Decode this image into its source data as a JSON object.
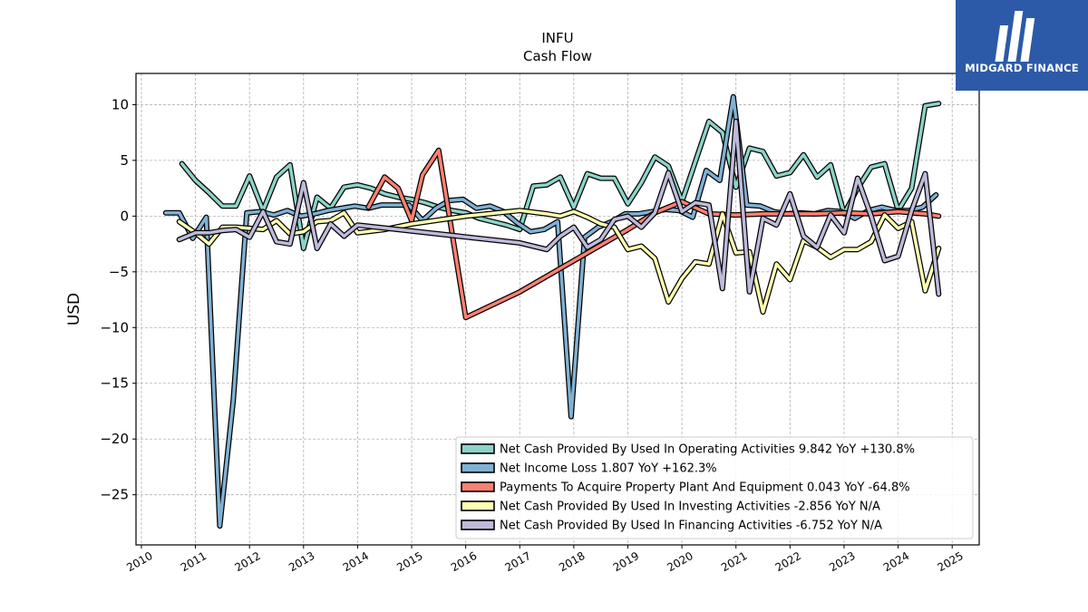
{
  "brand": {
    "name": "MIDGARD FINANCE",
    "bg_color": "#2c5aa8",
    "icon": "midgard-m-icon"
  },
  "chart_data": {
    "type": "line",
    "title": "INFU",
    "subtitle": "Cash Flow",
    "xlabel": "",
    "ylabel": "USD",
    "xlim": [
      2009.9,
      2025.5
    ],
    "ylim": [
      -29.5,
      12.8
    ],
    "x_ticks": [
      2010,
      2011,
      2012,
      2013,
      2014,
      2015,
      2016,
      2017,
      2018,
      2019,
      2020,
      2021,
      2022,
      2023,
      2024,
      2025
    ],
    "y_ticks": [
      10,
      5,
      0,
      -5,
      -10,
      -15,
      -20,
      -25
    ],
    "y_tick_labels": [
      "10",
      "5",
      "0",
      "−5",
      "−10",
      "−15",
      "−20",
      "−25"
    ],
    "grid": true,
    "legend_position": "lower-right",
    "series": [
      {
        "name": "Net Cash Provided By Used In Operating Activities",
        "legend_label": "Net Cash Provided By Used In Operating Activities  9.842 YoY +130.8%",
        "color": "#8dd3c7",
        "points": [
          [
            2010.75,
            4.7
          ],
          [
            2011.0,
            3.2
          ],
          [
            2011.25,
            2.1
          ],
          [
            2011.5,
            0.9
          ],
          [
            2011.75,
            0.9
          ],
          [
            2012.0,
            3.6
          ],
          [
            2012.25,
            0.5
          ],
          [
            2012.5,
            3.5
          ],
          [
            2012.75,
            4.6
          ],
          [
            2013.0,
            -2.9
          ],
          [
            2013.25,
            1.7
          ],
          [
            2013.5,
            0.7
          ],
          [
            2013.75,
            2.6
          ],
          [
            2014.0,
            2.8
          ],
          [
            2014.25,
            2.5
          ],
          [
            2014.5,
            2.0
          ],
          [
            2014.75,
            1.7
          ],
          [
            2015.0,
            1.5
          ],
          [
            2015.25,
            1.2
          ],
          [
            2015.5,
            0.8
          ],
          [
            2015.75,
            0.5
          ],
          [
            2016.0,
            0.3
          ],
          [
            2016.25,
            -0.2
          ],
          [
            2016.5,
            -0.5
          ],
          [
            2016.75,
            -0.8
          ],
          [
            2017.0,
            -1.2
          ],
          [
            2017.25,
            2.7
          ],
          [
            2017.5,
            2.8
          ],
          [
            2017.75,
            3.5
          ],
          [
            2018.0,
            0.8
          ],
          [
            2018.25,
            3.8
          ],
          [
            2018.5,
            3.4
          ],
          [
            2018.75,
            3.4
          ],
          [
            2019.0,
            1.1
          ],
          [
            2019.25,
            3.0
          ],
          [
            2019.5,
            5.3
          ],
          [
            2019.75,
            4.5
          ],
          [
            2020.0,
            1.3
          ],
          [
            2020.25,
            4.9
          ],
          [
            2020.5,
            8.5
          ],
          [
            2020.75,
            7.5
          ],
          [
            2021.0,
            2.6
          ],
          [
            2021.25,
            6.1
          ],
          [
            2021.5,
            5.8
          ],
          [
            2021.75,
            3.6
          ],
          [
            2022.0,
            3.9
          ],
          [
            2022.25,
            5.5
          ],
          [
            2022.5,
            3.5
          ],
          [
            2022.75,
            4.6
          ],
          [
            2023.0,
            0.2
          ],
          [
            2023.25,
            2.5
          ],
          [
            2023.5,
            4.4
          ],
          [
            2023.75,
            4.7
          ],
          [
            2024.0,
            0.5
          ],
          [
            2024.25,
            2.5
          ],
          [
            2024.5,
            9.9
          ],
          [
            2024.75,
            10.1
          ]
        ]
      },
      {
        "name": "Net Income Loss",
        "legend_label": "Net Income Loss  1.807 YoY +162.3%",
        "color": "#80b1d3",
        "points": [
          [
            2010.45,
            0.3
          ],
          [
            2010.7,
            0.3
          ],
          [
            2010.95,
            -2.0
          ],
          [
            2011.2,
            -0.1
          ],
          [
            2011.45,
            -27.8
          ],
          [
            2011.7,
            -16.5
          ],
          [
            2011.95,
            0.3
          ],
          [
            2012.2,
            0.4
          ],
          [
            2012.45,
            0.1
          ],
          [
            2012.7,
            0.5
          ],
          [
            2012.95,
            0.0
          ],
          [
            2013.2,
            0.2
          ],
          [
            2013.45,
            0.5
          ],
          [
            2013.7,
            0.7
          ],
          [
            2013.95,
            0.9
          ],
          [
            2014.2,
            0.7
          ],
          [
            2014.45,
            1.0
          ],
          [
            2014.7,
            1.0
          ],
          [
            2014.95,
            1.0
          ],
          [
            2015.2,
            -0.4
          ],
          [
            2015.45,
            0.7
          ],
          [
            2015.7,
            1.4
          ],
          [
            2015.95,
            1.5
          ],
          [
            2016.2,
            0.7
          ],
          [
            2016.45,
            0.9
          ],
          [
            2016.7,
            0.4
          ],
          [
            2016.95,
            -0.6
          ],
          [
            2017.2,
            -1.4
          ],
          [
            2017.45,
            -1.2
          ],
          [
            2017.7,
            -0.5
          ],
          [
            2017.95,
            -18.0
          ],
          [
            2018.2,
            -1.9
          ],
          [
            2018.45,
            -1.0
          ],
          [
            2018.7,
            -0.5
          ],
          [
            2018.95,
            0.2
          ],
          [
            2019.2,
            0.2
          ],
          [
            2019.45,
            0.4
          ],
          [
            2019.7,
            0.6
          ],
          [
            2019.95,
            0.5
          ],
          [
            2020.2,
            -0.1
          ],
          [
            2020.45,
            4.1
          ],
          [
            2020.7,
            3.2
          ],
          [
            2020.95,
            10.7
          ],
          [
            2021.2,
            1.0
          ],
          [
            2021.45,
            0.9
          ],
          [
            2021.7,
            0.4
          ],
          [
            2021.95,
            0.2
          ],
          [
            2022.2,
            0.3
          ],
          [
            2022.45,
            0.2
          ],
          [
            2022.7,
            0.5
          ],
          [
            2022.95,
            0.4
          ],
          [
            2023.2,
            -0.2
          ],
          [
            2023.45,
            0.5
          ],
          [
            2023.7,
            0.8
          ],
          [
            2023.95,
            0.5
          ],
          [
            2024.2,
            0.5
          ],
          [
            2024.45,
            0.8
          ],
          [
            2024.7,
            1.9
          ]
        ]
      },
      {
        "name": "Payments To Acquire Property Plant And Equipment",
        "legend_label": "Payments To Acquire Property Plant And Equipment  0.043 YoY -64.8%",
        "color": "#fb8072",
        "points": [
          [
            2014.2,
            0.8
          ],
          [
            2014.5,
            3.5
          ],
          [
            2014.75,
            2.5
          ],
          [
            2015.0,
            -0.4
          ],
          [
            2015.2,
            3.7
          ],
          [
            2015.5,
            5.9
          ],
          [
            2016.0,
            -9.1
          ],
          [
            2017.0,
            -6.8
          ],
          [
            2018.0,
            -4.0
          ],
          [
            2019.0,
            -1.2
          ],
          [
            2019.5,
            0.3
          ],
          [
            2020.0,
            1.3
          ],
          [
            2020.5,
            0.2
          ],
          [
            2021.0,
            0.1
          ],
          [
            2021.5,
            0.2
          ],
          [
            2022.0,
            0.2
          ],
          [
            2022.5,
            0.2
          ],
          [
            2023.0,
            0.3
          ],
          [
            2023.5,
            0.2
          ],
          [
            2024.0,
            0.4
          ],
          [
            2024.5,
            0.2
          ],
          [
            2024.75,
            0.0
          ]
        ]
      },
      {
        "name": "Net Cash Provided By Used In Investing Activities",
        "legend_label": "Net Cash Provided By Used In Investing Activities  -2.856 YoY N/A",
        "color": "#ffffb3",
        "points": [
          [
            2010.7,
            -0.5
          ],
          [
            2011.0,
            -1.5
          ],
          [
            2011.25,
            -2.5
          ],
          [
            2011.5,
            -1.0
          ],
          [
            2011.75,
            -1.0
          ],
          [
            2012.0,
            -1.1
          ],
          [
            2012.25,
            -1.2
          ],
          [
            2012.5,
            -0.4
          ],
          [
            2012.75,
            -1.6
          ],
          [
            2013.0,
            -1.4
          ],
          [
            2013.25,
            -0.5
          ],
          [
            2013.5,
            -0.4
          ],
          [
            2013.75,
            0.3
          ],
          [
            2014.0,
            -1.5
          ],
          [
            2014.5,
            -1.2
          ],
          [
            2015.0,
            -0.7
          ],
          [
            2016.0,
            0.0
          ],
          [
            2017.0,
            0.5
          ],
          [
            2017.5,
            0.2
          ],
          [
            2017.75,
            0.0
          ],
          [
            2018.0,
            0.4
          ],
          [
            2018.25,
            -0.1
          ],
          [
            2018.5,
            -0.7
          ],
          [
            2018.75,
            -1.0
          ],
          [
            2019.0,
            -3.0
          ],
          [
            2019.25,
            -2.7
          ],
          [
            2019.5,
            -3.8
          ],
          [
            2019.75,
            -7.7
          ],
          [
            2020.0,
            -5.6
          ],
          [
            2020.25,
            -4.1
          ],
          [
            2020.5,
            -4.3
          ],
          [
            2020.75,
            0.2
          ],
          [
            2021.0,
            -3.3
          ],
          [
            2021.25,
            -3.2
          ],
          [
            2021.5,
            -8.6
          ],
          [
            2021.75,
            -4.3
          ],
          [
            2022.0,
            -5.7
          ],
          [
            2022.25,
            -2.2
          ],
          [
            2022.5,
            -2.8
          ],
          [
            2022.75,
            -3.7
          ],
          [
            2023.0,
            -3.0
          ],
          [
            2023.25,
            -3.0
          ],
          [
            2023.5,
            -2.3
          ],
          [
            2023.75,
            0.1
          ],
          [
            2024.0,
            -1.1
          ],
          [
            2024.25,
            -0.5
          ],
          [
            2024.5,
            -6.7
          ],
          [
            2024.75,
            -2.9
          ]
        ]
      },
      {
        "name": "Net Cash Provided By Used In Financing Activities",
        "legend_label": "Net Cash Provided By Used In Financing Activities  -6.752 YoY N/A",
        "color": "#bebada",
        "points": [
          [
            2010.7,
            -2.1
          ],
          [
            2011.0,
            -1.5
          ],
          [
            2011.25,
            -1.5
          ],
          [
            2011.5,
            -1.3
          ],
          [
            2011.75,
            -1.2
          ],
          [
            2012.0,
            -1.9
          ],
          [
            2012.25,
            0.4
          ],
          [
            2012.5,
            -2.3
          ],
          [
            2012.75,
            -2.5
          ],
          [
            2013.0,
            3.0
          ],
          [
            2013.25,
            -2.9
          ],
          [
            2013.5,
            -0.7
          ],
          [
            2013.75,
            -1.8
          ],
          [
            2014.0,
            -0.8
          ],
          [
            2017.0,
            -2.4
          ],
          [
            2017.5,
            -3.0
          ],
          [
            2017.75,
            -1.8
          ],
          [
            2018.0,
            -1.0
          ],
          [
            2018.25,
            -2.8
          ],
          [
            2018.5,
            -2.1
          ],
          [
            2018.75,
            -0.3
          ],
          [
            2019.0,
            0.0
          ],
          [
            2019.25,
            -1.0
          ],
          [
            2019.5,
            0.3
          ],
          [
            2019.75,
            3.9
          ],
          [
            2020.0,
            0.4
          ],
          [
            2020.25,
            1.2
          ],
          [
            2020.5,
            1.0
          ],
          [
            2020.75,
            -6.5
          ],
          [
            2021.0,
            8.5
          ],
          [
            2021.25,
            -6.8
          ],
          [
            2021.5,
            -0.2
          ],
          [
            2021.75,
            -0.8
          ],
          [
            2022.0,
            2.0
          ],
          [
            2022.25,
            -1.8
          ],
          [
            2022.5,
            -2.8
          ],
          [
            2022.75,
            0.1
          ],
          [
            2023.0,
            -1.5
          ],
          [
            2023.25,
            3.4
          ],
          [
            2023.5,
            0.0
          ],
          [
            2023.75,
            -4.0
          ],
          [
            2024.0,
            -3.6
          ],
          [
            2024.25,
            0.5
          ],
          [
            2024.5,
            3.8
          ],
          [
            2024.75,
            -7.0
          ]
        ]
      }
    ]
  }
}
